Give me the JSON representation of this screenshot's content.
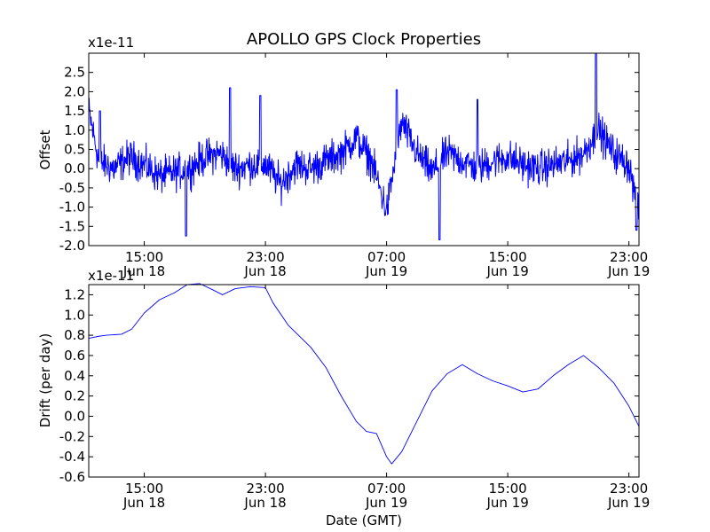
{
  "title": "APOLLO GPS Clock Properties",
  "xlabel": "Date (GMT)",
  "x_ticks": [
    {
      "time": "15:00",
      "date": "Jun 18"
    },
    {
      "time": "23:00",
      "date": "Jun 18"
    },
    {
      "time": "07:00",
      "date": "Jun 19"
    },
    {
      "time": "15:00",
      "date": "Jun 19"
    },
    {
      "time": "23:00",
      "date": "Jun 19"
    }
  ],
  "colors": {
    "line": "#0000ff",
    "axes": "#000000",
    "background": "#ffffff"
  },
  "chart_data": [
    {
      "type": "line",
      "title": "APOLLO GPS Clock Properties",
      "xlabel": "",
      "ylabel": "Offset",
      "scale_note": "x1e-11",
      "x_range": [
        "Jun 18 11:20",
        "Jun 19 23:40"
      ],
      "ylim": [
        -2.0,
        3.0
      ],
      "y_ticks": [
        "-2.0",
        "-1.5",
        "-1.0",
        "-0.5",
        "0.0",
        "0.5",
        "1.0",
        "1.5",
        "2.0",
        "2.5"
      ],
      "grid": false,
      "legend": "none",
      "series": [
        {
          "color": "#0000ff",
          "x": [
            "Jun 18 11:20",
            "Jun 18 12:00",
            "Jun 18 13:00",
            "Jun 18 14:00",
            "Jun 18 15:00",
            "Jun 18 16:00",
            "Jun 18 17:00",
            "Jun 18 18:00",
            "Jun 18 19:00",
            "Jun 18 20:00",
            "Jun 18 21:00",
            "Jun 18 22:00",
            "Jun 18 23:00",
            "Jun 19 00:00",
            "Jun 19 01:00",
            "Jun 19 02:00",
            "Jun 19 03:00",
            "Jun 19 04:00",
            "Jun 19 05:00",
            "Jun 19 06:00",
            "Jun 19 07:00",
            "Jun 19 08:00",
            "Jun 19 09:00",
            "Jun 19 10:00",
            "Jun 19 11:00",
            "Jun 19 12:00",
            "Jun 19 13:00",
            "Jun 19 14:00",
            "Jun 19 15:00",
            "Jun 19 16:00",
            "Jun 19 17:00",
            "Jun 19 18:00",
            "Jun 19 19:00",
            "Jun 19 20:00",
            "Jun 19 21:00",
            "Jun 19 22:00",
            "Jun 19 23:00",
            "Jun 19 23:40"
          ],
          "values": [
            1.5,
            0.2,
            0.0,
            0.3,
            0.1,
            -0.2,
            -0.1,
            0.0,
            0.3,
            0.4,
            0.0,
            0.1,
            0.1,
            -0.4,
            0.1,
            0.0,
            0.2,
            0.4,
            0.8,
            0.2,
            -1.1,
            1.2,
            0.4,
            -0.1,
            0.4,
            0.2,
            0.0,
            0.2,
            0.3,
            0.1,
            0.0,
            0.1,
            0.2,
            0.4,
            1.0,
            0.4,
            0.1,
            -1.2
          ],
          "noise_amplitude": 0.45,
          "peaks": [
            {
              "x": "Jun 18 12:05",
              "value": 1.5
            },
            {
              "x": "Jun 18 17:45",
              "value": -1.75
            },
            {
              "x": "Jun 18 20:40",
              "value": 2.1
            },
            {
              "x": "Jun 18 22:40",
              "value": 1.9
            },
            {
              "x": "Jun 19 07:40",
              "value": 2.05
            },
            {
              "x": "Jun 19 10:30",
              "value": -1.85
            },
            {
              "x": "Jun 19 13:00",
              "value": 1.8
            },
            {
              "x": "Jun 19 20:50",
              "value": 3.0
            },
            {
              "x": "Jun 19 23:30",
              "value": -1.6
            }
          ]
        }
      ]
    },
    {
      "type": "line",
      "xlabel": "Date (GMT)",
      "ylabel": "Drift (per day)",
      "scale_note": "x1e-11",
      "x_range": [
        "Jun 18 11:20",
        "Jun 19 23:40"
      ],
      "ylim": [
        -0.6,
        1.3
      ],
      "y_ticks": [
        "-0.6",
        "-0.4",
        "-0.2",
        "0.0",
        "0.2",
        "0.4",
        "0.6",
        "0.8",
        "1.0",
        "1.2"
      ],
      "grid": false,
      "legend": "none",
      "series": [
        {
          "color": "#0000ff",
          "x": [
            "Jun 18 11:20",
            "Jun 18 12:00",
            "Jun 18 12:30",
            "Jun 18 13:30",
            "Jun 18 14:10",
            "Jun 18 15:00",
            "Jun 18 16:00",
            "Jun 18 17:00",
            "Jun 18 17:50",
            "Jun 18 18:40",
            "Jun 18 19:30",
            "Jun 18 20:10",
            "Jun 18 21:00",
            "Jun 18 22:00",
            "Jun 18 23:00",
            "Jun 18 23:30",
            "Jun 19 00:30",
            "Jun 19 02:00",
            "Jun 19 03:00",
            "Jun 19 04:00",
            "Jun 19 05:00",
            "Jun 19 05:40",
            "Jun 19 06:20",
            "Jun 19 07:00",
            "Jun 19 07:20",
            "Jun 19 08:00",
            "Jun 19 09:00",
            "Jun 19 10:00",
            "Jun 19 11:00",
            "Jun 19 12:00",
            "Jun 19 13:00",
            "Jun 19 14:00",
            "Jun 19 15:00",
            "Jun 19 16:00",
            "Jun 19 17:00",
            "Jun 19 18:00",
            "Jun 19 19:00",
            "Jun 19 20:00",
            "Jun 19 21:00",
            "Jun 19 22:00",
            "Jun 19 23:00",
            "Jun 19 23:40"
          ],
          "values": [
            0.77,
            0.79,
            0.8,
            0.81,
            0.86,
            1.02,
            1.15,
            1.22,
            1.3,
            1.31,
            1.25,
            1.2,
            1.26,
            1.28,
            1.27,
            1.12,
            0.9,
            0.68,
            0.48,
            0.2,
            -0.05,
            -0.15,
            -0.17,
            -0.4,
            -0.47,
            -0.35,
            -0.05,
            0.25,
            0.42,
            0.51,
            0.42,
            0.35,
            0.3,
            0.24,
            0.27,
            0.4,
            0.51,
            0.6,
            0.48,
            0.33,
            0.1,
            -0.1
          ]
        }
      ]
    }
  ]
}
